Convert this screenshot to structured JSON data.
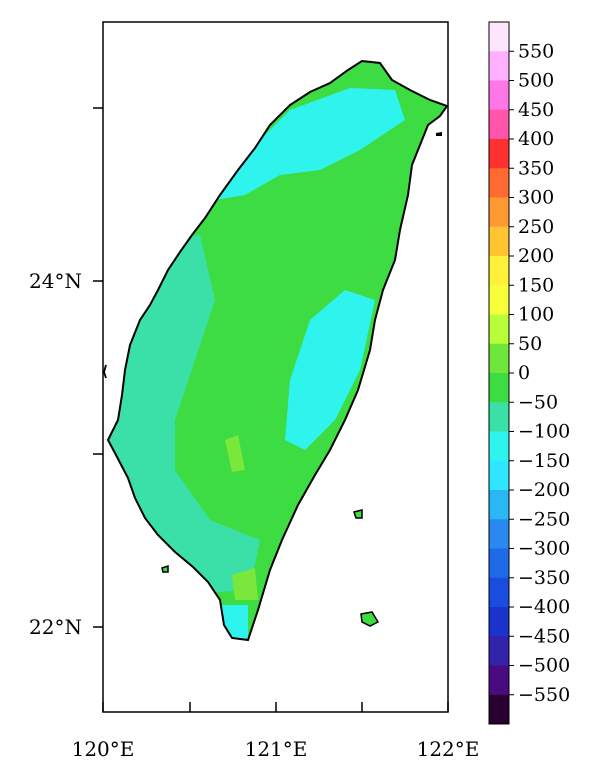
{
  "map": {
    "x_ticks": [
      "120°E",
      "121°E",
      "122°E"
    ],
    "y_ticks": [
      "24°N",
      "22°N"
    ],
    "region_fill_dominant": "#3ddc42",
    "region_fill_secondary": "#3ae0a8",
    "region_fill_cool": "#2ff4ee",
    "region_fill_warm": "#7ae83a",
    "coast_color": "#000000"
  },
  "colorbar": {
    "labels": [
      "550",
      "500",
      "450",
      "400",
      "350",
      "300",
      "250",
      "200",
      "150",
      "100",
      "50",
      "0",
      "−50",
      "−100",
      "−150",
      "−200",
      "−250",
      "−300",
      "−350",
      "−400",
      "−450",
      "−500",
      "−550"
    ],
    "colors": [
      "#ffe6ff",
      "#ffb0ff",
      "#ff77e6",
      "#ff55aa",
      "#ff3030",
      "#ff6a30",
      "#ff9a33",
      "#ffc430",
      "#fff03a",
      "#f7ff3a",
      "#b8ff3a",
      "#6ee63a",
      "#3ddc42",
      "#3ae0a8",
      "#2ff4ee",
      "#2ee6ff",
      "#2ab8f5",
      "#2a88f0",
      "#1f6ae6",
      "#1a4ddf",
      "#1a33cc",
      "#3322aa",
      "#4a0a80",
      "#2a0030"
    ]
  }
}
